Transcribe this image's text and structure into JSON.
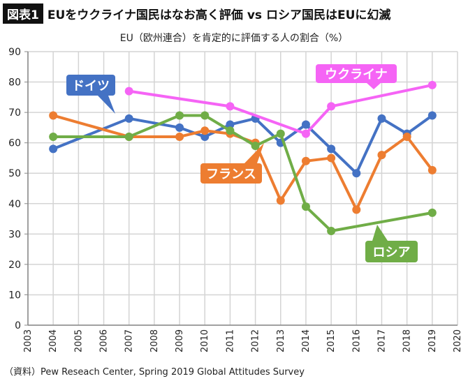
{
  "header": {
    "badge": "図表1",
    "title": "EUをウクライナ国民はなお高く評価 vs ロシア国民はEUに幻滅"
  },
  "subtitle": "EU（欧州連合）を肯定的に評価する人の割合（%）",
  "source": "（資料）Pew Reseach Center, Spring 2019 Global Attitudes Survey",
  "chart_data": {
    "type": "line",
    "title": "EU（欧州連合）を肯定的に評価する人の割合（%）",
    "xlim": [
      2003,
      2020
    ],
    "ylim": [
      0,
      90
    ],
    "grid": true,
    "xticks": [
      2003,
      2004,
      2005,
      2006,
      2007,
      2008,
      2009,
      2010,
      2011,
      2012,
      2013,
      2014,
      2015,
      2016,
      2017,
      2018,
      2019,
      2020
    ],
    "yticks": [
      0,
      10,
      20,
      30,
      40,
      50,
      60,
      70,
      80,
      90
    ],
    "series": [
      {
        "name": "ドイツ",
        "color": "#4472c4",
        "x": [
          2004,
          2007,
          2009,
          2010,
          2011,
          2012,
          2013,
          2014,
          2015,
          2016,
          2017,
          2018,
          2019
        ],
        "values": [
          58,
          68,
          65,
          62,
          66,
          68,
          60,
          66,
          58,
          50,
          68,
          63,
          69
        ]
      },
      {
        "name": "フランス",
        "color": "#ed7d31",
        "x": [
          2004,
          2007,
          2009,
          2010,
          2011,
          2012,
          2013,
          2014,
          2015,
          2016,
          2017,
          2018,
          2019
        ],
        "values": [
          69,
          62,
          62,
          64,
          63,
          60,
          41,
          54,
          55,
          38,
          56,
          62,
          51
        ]
      },
      {
        "name": "ロシア",
        "color": "#70ad47",
        "x": [
          2004,
          2007,
          2009,
          2010,
          2011,
          2012,
          2013,
          2014,
          2015,
          2019
        ],
        "values": [
          62,
          62,
          69,
          69,
          64,
          59,
          63,
          39,
          31,
          37
        ]
      },
      {
        "name": "ウクライナ",
        "color": "#f564f5",
        "x": [
          2007,
          2011,
          2014,
          2015,
          2019
        ],
        "values": [
          77,
          72,
          63,
          72,
          79
        ]
      }
    ]
  }
}
